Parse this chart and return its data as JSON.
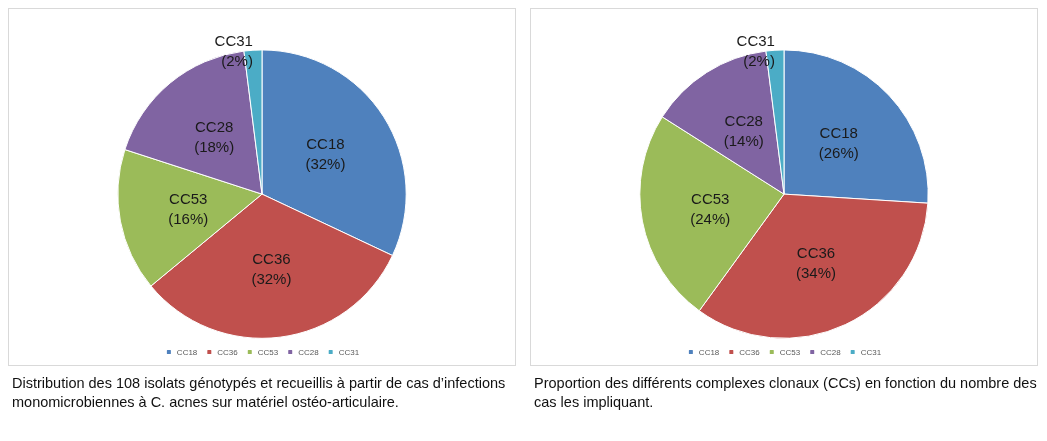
{
  "chart_data": [
    {
      "type": "pie",
      "categories": [
        "CC18",
        "CC36",
        "CC53",
        "CC28",
        "CC31"
      ],
      "values": [
        32,
        32,
        16,
        18,
        2
      ],
      "value_labels": [
        "(32%)",
        "(32%)",
        "(16%)",
        "(18%)",
        "(2%)"
      ],
      "colors": [
        "#4f81bd",
        "#c0504d",
        "#9bbb59",
        "#8064a2",
        "#4bacc6"
      ],
      "legend": "bottom",
      "annotations": [
        "Distribution des 108 isolats génotypés et recueillis à partir de cas d’infections monomicrobiennes à C. acnes sur matériel ostéo-articulaire."
      ]
    },
    {
      "type": "pie",
      "categories": [
        "CC18",
        "CC36",
        "CC53",
        "CC28",
        "CC31"
      ],
      "values": [
        26,
        34,
        24,
        14,
        2
      ],
      "value_labels": [
        "(26%)",
        "(34%)",
        "(24%)",
        "(14%)",
        "(2%)"
      ],
      "colors": [
        "#4f81bd",
        "#c0504d",
        "#9bbb59",
        "#8064a2",
        "#4bacc6"
      ],
      "legend": "bottom",
      "annotations": [
        "Proportion des différents complexes clonaux (CCs) en fonction du nombre des cas les impliquant."
      ]
    }
  ]
}
